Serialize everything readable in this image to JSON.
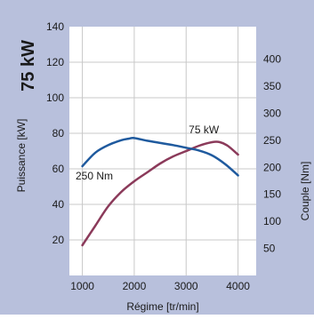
{
  "chart_data": {
    "type": "line",
    "badge": "75 kW",
    "xlabel": "Régime [tr/min]",
    "ylabel_left": "Puissance [kW]",
    "ylabel_right": "Couple [Nm]",
    "xlim": [
      750,
      4350
    ],
    "ylim_left": [
      0,
      140
    ],
    "ylim_right": [
      0,
      460
    ],
    "x_ticks": [
      "1000",
      "2000",
      "3000",
      "4000"
    ],
    "x_tick_values": [
      1000,
      2000,
      3000,
      4000
    ],
    "y_left_ticks": [
      "20",
      "40",
      "60",
      "80",
      "100",
      "120",
      "140"
    ],
    "y_left_tick_values": [
      20,
      40,
      60,
      80,
      100,
      120,
      140
    ],
    "y_right_ticks": [
      "50",
      "100",
      "150",
      "200",
      "250",
      "300",
      "350",
      "400"
    ],
    "y_right_tick_values": [
      50,
      100,
      150,
      200,
      250,
      300,
      350,
      400
    ],
    "grid": true,
    "colors": {
      "frame": "#b8c0dc",
      "plot_bg": "#ffffff",
      "grid": "#c8c8c8",
      "power": "#8b3a5a",
      "torque": "#1f5a9e"
    },
    "series": [
      {
        "name": "75 kW",
        "axis": "left",
        "x": [
          1000,
          1250,
          1500,
          1750,
          2000,
          2250,
          2500,
          2750,
          3000,
          3250,
          3500,
          3650,
          3800,
          4000
        ],
        "y": [
          17,
          28,
          39,
          47,
          53,
          58,
          63,
          67,
          70,
          73,
          75,
          75,
          73,
          68
        ]
      },
      {
        "name": "250 Nm",
        "axis": "right",
        "x": [
          1000,
          1250,
          1500,
          1750,
          1900,
          2000,
          2250,
          2500,
          2750,
          3000,
          3250,
          3500,
          3750,
          4000
        ],
        "y": [
          202,
          227,
          241,
          250,
          253,
          254,
          249,
          245,
          241,
          236,
          231,
          222,
          206,
          185
        ]
      }
    ],
    "annotations": [
      {
        "text": "75 kW",
        "x": 3050,
        "y": 80,
        "axis": "left"
      },
      {
        "text": "250 Nm",
        "x": 870,
        "y": 54,
        "axis": "left"
      }
    ]
  }
}
